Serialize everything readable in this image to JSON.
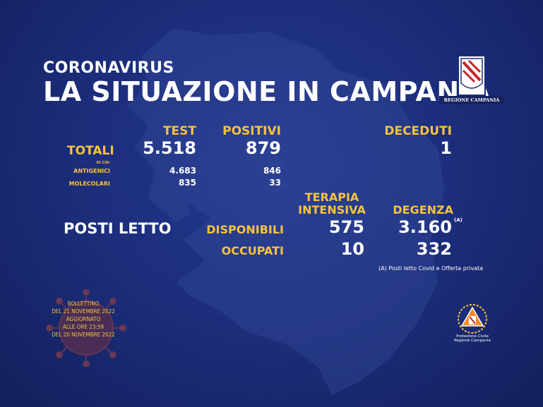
{
  "header": {
    "kicker": "CORONAVIRUS",
    "title": "LA SITUAZIONE IN CAMPANIA"
  },
  "logo": {
    "label": "REGIONE CAMPANIA"
  },
  "columns": {
    "test": "TEST",
    "positivi": "POSITIVI",
    "deceduti": "DECEDUTI"
  },
  "totali": {
    "label": "TOTALI",
    "test": "5.518",
    "positivi": "879",
    "deceduti": "1"
  },
  "breakdown": {
    "di_cui": "DI CUI:",
    "antigenici": {
      "label": "ANTIGENICI",
      "test": "4.683",
      "positivi": "846"
    },
    "molecolari": {
      "label": "MOLECOLARI",
      "test": "835",
      "positivi": "33"
    }
  },
  "posti_letto": {
    "label": "POSTI LETTO",
    "terapia_line1": "TERAPIA",
    "terapia_line2": "INTENSIVA",
    "degenza": "DEGENZA",
    "degenza_note_marker": "(A)",
    "disponibili": {
      "label": "DISPONIBILI",
      "terapia": "575",
      "degenza": "3.160"
    },
    "occupati": {
      "label": "OCCUPATI",
      "terapia": "10",
      "degenza": "332"
    },
    "note": "(A) Posti letto Covid e Offerta privata"
  },
  "bollettino": {
    "lines": [
      "BOLLETTINO",
      "DEL 21 NOVEMBRE 2022",
      "AGGIORNATO",
      "ALLE ORE 23:59",
      "DEL 20 NOVEMBRE 2022"
    ]
  },
  "protezione_civile": {
    "line1": "Protezione Civile",
    "line2": "Regione Campania"
  },
  "colors": {
    "background": "#1b2c78",
    "accent": "#f7c33b",
    "text": "#ffffff"
  }
}
